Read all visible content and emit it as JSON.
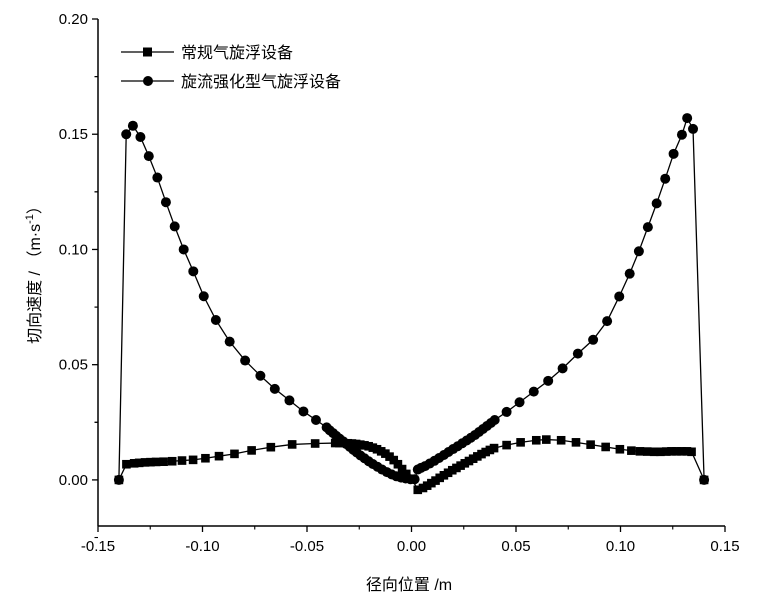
{
  "chart_data": {
    "type": "line",
    "xlabel": "径向位置 /m",
    "ylabel": "切向速度 / （m·s",
    "ylabel_sup": "-1",
    "ylabel_close": "）",
    "xlim": [
      -0.15,
      0.15
    ],
    "ylim": [
      -0.02,
      0.2
    ],
    "xticks": [
      -0.15,
      -0.1,
      -0.05,
      0.0,
      0.05,
      0.1,
      0.15
    ],
    "xtick_labels": [
      "-0.15",
      "-0.10",
      "-0.05",
      "0.00",
      "0.05",
      "0.10",
      "0.15"
    ],
    "yticks": [
      0.0,
      0.05,
      0.1,
      0.15,
      0.2
    ],
    "ytick_labels": [
      "0.00",
      "0.05",
      "0.10",
      "0.15",
      "0.20"
    ],
    "legend_position": "top-left",
    "grid": false,
    "series": [
      {
        "name": "常规气旋浮设备",
        "marker": "square",
        "color": "#000000",
        "x": [
          -0.14,
          -0.1364,
          -0.1327,
          -0.1303,
          -0.1275,
          -0.1249,
          -0.1222,
          -0.1186,
          -0.1145,
          -0.1098,
          -0.1045,
          -0.0986,
          -0.0921,
          -0.0847,
          -0.0765,
          -0.0673,
          -0.0571,
          -0.0461,
          -0.0365,
          -0.0345,
          -0.0325,
          -0.0305,
          -0.0285,
          -0.0265,
          -0.0245,
          -0.0225,
          -0.0205,
          -0.0185,
          -0.0165,
          -0.0145,
          -0.0125,
          -0.0105,
          -0.0085,
          -0.0065,
          -0.0045,
          -0.0025,
          0.0002,
          0.003,
          0.0055,
          0.0075,
          0.0095,
          0.0115,
          0.0135,
          0.0155,
          0.0175,
          0.0195,
          0.0215,
          0.0235,
          0.0255,
          0.0275,
          0.0295,
          0.0315,
          0.0335,
          0.0355,
          0.0375,
          0.0395,
          0.0455,
          0.0522,
          0.0597,
          0.0645,
          0.0716,
          0.0787,
          0.0857,
          0.0929,
          0.0997,
          0.1052,
          0.1093,
          0.1128,
          0.1161,
          0.1191,
          0.1219,
          0.1244,
          0.1268,
          0.1292,
          0.1318,
          0.134,
          0.14
        ],
        "y": [
          0.0,
          0.0068,
          0.0072,
          0.0074,
          0.0076,
          0.0077,
          0.0078,
          0.0079,
          0.0081,
          0.0084,
          0.0087,
          0.0094,
          0.0103,
          0.0113,
          0.0128,
          0.0142,
          0.0154,
          0.0158,
          0.016,
          0.016,
          0.016,
          0.0159,
          0.0158,
          0.0156,
          0.0153,
          0.015,
          0.0146,
          0.014,
          0.0133,
          0.0124,
          0.0114,
          0.0101,
          0.0086,
          0.0068,
          0.0047,
          0.0026,
          0.0005,
          -0.0043,
          -0.0035,
          -0.0025,
          -0.0014,
          -0.0003,
          0.0009,
          0.002,
          0.0031,
          0.0042,
          0.0052,
          0.0062,
          0.0072,
          0.0082,
          0.0092,
          0.0102,
          0.0112,
          0.0121,
          0.013,
          0.0138,
          0.0151,
          0.0163,
          0.0172,
          0.0175,
          0.0172,
          0.0163,
          0.0153,
          0.0143,
          0.0133,
          0.0127,
          0.0124,
          0.0123,
          0.0122,
          0.0122,
          0.0123,
          0.0124,
          0.0124,
          0.0124,
          0.0124,
          0.0122,
          0.0
        ]
      },
      {
        "name": "旋流强化型气旋浮设备",
        "marker": "circle",
        "color": "#000000",
        "x": [
          -0.14,
          -0.1365,
          -0.1333,
          -0.1297,
          -0.1257,
          -0.1216,
          -0.1175,
          -0.1133,
          -0.109,
          -0.1044,
          -0.0994,
          -0.0936,
          -0.087,
          -0.0796,
          -0.0723,
          -0.0654,
          -0.0584,
          -0.0517,
          -0.0457,
          -0.0406,
          -0.0391,
          -0.0375,
          -0.036,
          -0.0344,
          -0.0328,
          -0.0313,
          -0.0296,
          -0.0279,
          -0.0262,
          -0.0244,
          -0.0225,
          -0.0205,
          -0.0185,
          -0.0163,
          -0.0141,
          -0.0118,
          -0.0095,
          -0.0073,
          -0.005,
          -0.0028,
          -0.0005,
          0.0015,
          0.003,
          0.0045,
          0.0065,
          0.0087,
          0.011,
          0.0132,
          0.0155,
          0.0177,
          0.0199,
          0.0221,
          0.0243,
          0.0264,
          0.0284,
          0.0304,
          0.0323,
          0.0342,
          0.0361,
          0.038,
          0.0398,
          0.0455,
          0.0517,
          0.0585,
          0.0654,
          0.0723,
          0.0796,
          0.0869,
          0.0936,
          0.0994,
          0.1044,
          0.1088,
          0.1131,
          0.1173,
          0.1214,
          0.1254,
          0.1294,
          0.1319,
          0.1347,
          0.14
        ],
        "y": [
          0.0,
          0.15,
          0.1537,
          0.1488,
          0.1405,
          0.1312,
          0.1205,
          0.11,
          0.1,
          0.0905,
          0.0797,
          0.0694,
          0.06,
          0.0518,
          0.0452,
          0.0395,
          0.0345,
          0.0297,
          0.026,
          0.0228,
          0.0215,
          0.0203,
          0.0191,
          0.0179,
          0.0168,
          0.0156,
          0.0144,
          0.0131,
          0.0119,
          0.0106,
          0.0094,
          0.0081,
          0.0069,
          0.0057,
          0.0045,
          0.0034,
          0.0024,
          0.0016,
          0.001,
          0.0006,
          0.0003,
          0.0003,
          0.0045,
          0.0052,
          0.006,
          0.0071,
          0.0083,
          0.0095,
          0.0108,
          0.0121,
          0.0134,
          0.0146,
          0.0159,
          0.0171,
          0.0183,
          0.0195,
          0.0208,
          0.0221,
          0.0234,
          0.0247,
          0.026,
          0.0295,
          0.0337,
          0.0383,
          0.043,
          0.0484,
          0.0548,
          0.0608,
          0.0689,
          0.0796,
          0.0895,
          0.0992,
          0.1097,
          0.12,
          0.1307,
          0.1415,
          0.1498,
          0.157,
          0.1523,
          0.0
        ]
      }
    ]
  }
}
